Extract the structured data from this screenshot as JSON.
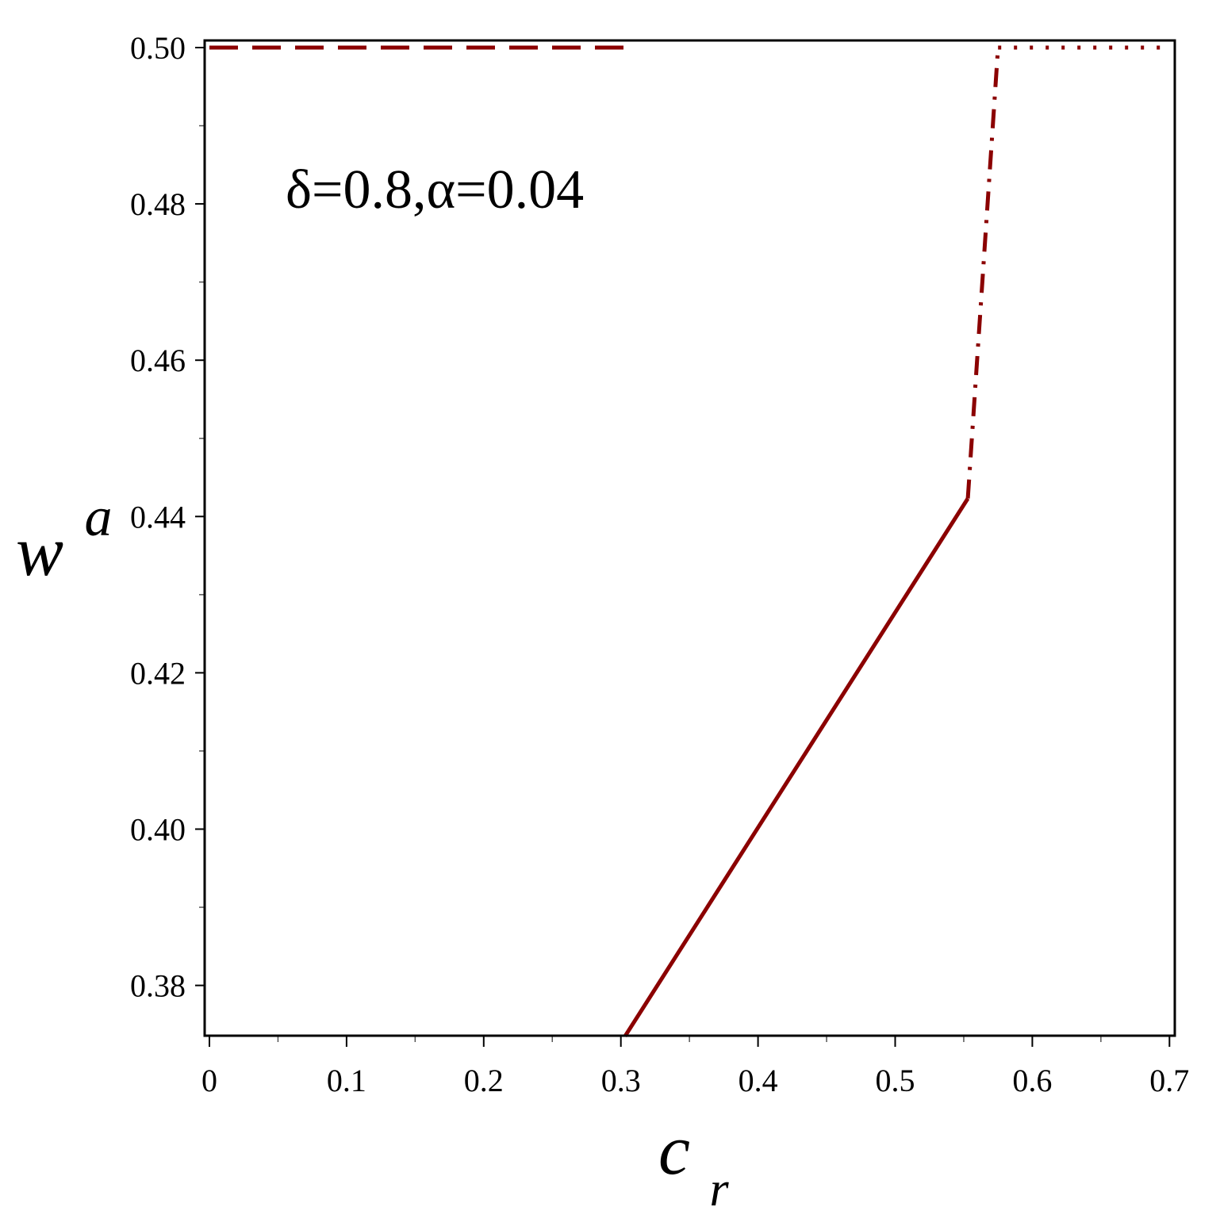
{
  "chart_data": {
    "type": "line",
    "title": "",
    "annotation": "δ=0.8,α=0.04",
    "xlabel": {
      "base": "c",
      "sub": "r"
    },
    "ylabel": {
      "base": "w",
      "sup": "a"
    },
    "xlim": [
      0,
      0.7
    ],
    "ylim": [
      0.3735,
      0.5
    ],
    "x_ticks": [
      0,
      0.1,
      0.2,
      0.3,
      0.4,
      0.5,
      0.6,
      0.7
    ],
    "x_tick_labels": [
      "0",
      "0.1",
      "0.2",
      "0.3",
      "0.4",
      "0.5",
      "0.6",
      "0.7"
    ],
    "y_ticks": [
      0.38,
      0.4,
      0.42,
      0.44,
      0.46,
      0.48,
      0.5
    ],
    "y_tick_labels": [
      "0.38",
      "0.40",
      "0.42",
      "0.44",
      "0.46",
      "0.48",
      "0.50"
    ],
    "grid": false,
    "line_color": "#8b0000",
    "series": [
      {
        "style": "dashed",
        "x": [
          0,
          0.303
        ],
        "y": [
          0.5,
          0.5
        ]
      },
      {
        "style": "solid",
        "x": [
          0.303,
          0.553
        ],
        "y": [
          0.3735,
          0.4423
        ]
      },
      {
        "style": "dashdot",
        "x": [
          0.553,
          0.575
        ],
        "y": [
          0.4423,
          0.5
        ]
      },
      {
        "style": "dotted",
        "x": [
          0.575,
          0.7
        ],
        "y": [
          0.5,
          0.5
        ]
      }
    ]
  }
}
